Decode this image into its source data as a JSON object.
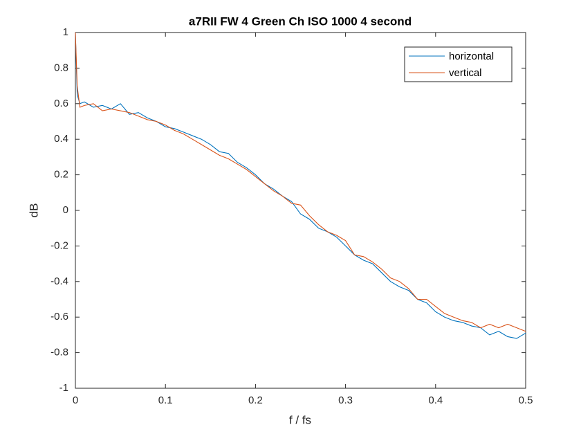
{
  "chart_data": {
    "type": "line",
    "title": "a7RII FW 4 Green Ch ISO 1000 4 second",
    "xlabel": "f / fs",
    "ylabel": "dB",
    "x": [
      0,
      0.002,
      0.005,
      0.01,
      0.02,
      0.03,
      0.04,
      0.05,
      0.06,
      0.07,
      0.08,
      0.09,
      0.1,
      0.11,
      0.12,
      0.13,
      0.14,
      0.15,
      0.16,
      0.17,
      0.18,
      0.19,
      0.2,
      0.21,
      0.22,
      0.23,
      0.24,
      0.25,
      0.26,
      0.27,
      0.28,
      0.29,
      0.3,
      0.31,
      0.32,
      0.33,
      0.34,
      0.35,
      0.36,
      0.37,
      0.38,
      0.39,
      0.4,
      0.41,
      0.42,
      0.43,
      0.44,
      0.45,
      0.46,
      0.47,
      0.48,
      0.49,
      0.5
    ],
    "series": [
      {
        "name": "horizontal",
        "color": "#0072BD",
        "values": [
          1.0,
          0.65,
          0.6,
          0.61,
          0.58,
          0.59,
          0.57,
          0.6,
          0.54,
          0.55,
          0.52,
          0.5,
          0.47,
          0.46,
          0.44,
          0.42,
          0.4,
          0.37,
          0.33,
          0.32,
          0.27,
          0.24,
          0.2,
          0.15,
          0.12,
          0.08,
          0.05,
          -0.02,
          -0.05,
          -0.1,
          -0.12,
          -0.15,
          -0.2,
          -0.25,
          -0.28,
          -0.3,
          -0.35,
          -0.4,
          -0.43,
          -0.45,
          -0.5,
          -0.52,
          -0.57,
          -0.6,
          -0.62,
          -0.63,
          -0.65,
          -0.66,
          -0.7,
          -0.68,
          -0.71,
          -0.72,
          -0.69
        ]
      },
      {
        "name": "vertical",
        "color": "#D95319",
        "values": [
          1.0,
          0.7,
          0.58,
          0.59,
          0.6,
          0.56,
          0.57,
          0.56,
          0.55,
          0.53,
          0.51,
          0.5,
          0.48,
          0.45,
          0.43,
          0.4,
          0.37,
          0.34,
          0.31,
          0.29,
          0.26,
          0.23,
          0.19,
          0.15,
          0.11,
          0.08,
          0.04,
          0.03,
          -0.03,
          -0.08,
          -0.12,
          -0.14,
          -0.17,
          -0.25,
          -0.26,
          -0.29,
          -0.33,
          -0.38,
          -0.4,
          -0.44,
          -0.5,
          -0.5,
          -0.54,
          -0.58,
          -0.6,
          -0.62,
          -0.63,
          -0.66,
          -0.64,
          -0.66,
          -0.64,
          -0.66,
          -0.68
        ]
      }
    ],
    "xlim": [
      0,
      0.5
    ],
    "xticks": [
      0,
      0.1,
      0.2,
      0.3,
      0.4,
      0.5
    ],
    "ylim": [
      -1,
      1
    ],
    "yticks": [
      -1,
      -0.8,
      -0.6,
      -0.4,
      -0.2,
      0,
      0.2,
      0.4,
      0.6,
      0.8,
      1
    ],
    "grid": false,
    "legend": "northeast"
  }
}
